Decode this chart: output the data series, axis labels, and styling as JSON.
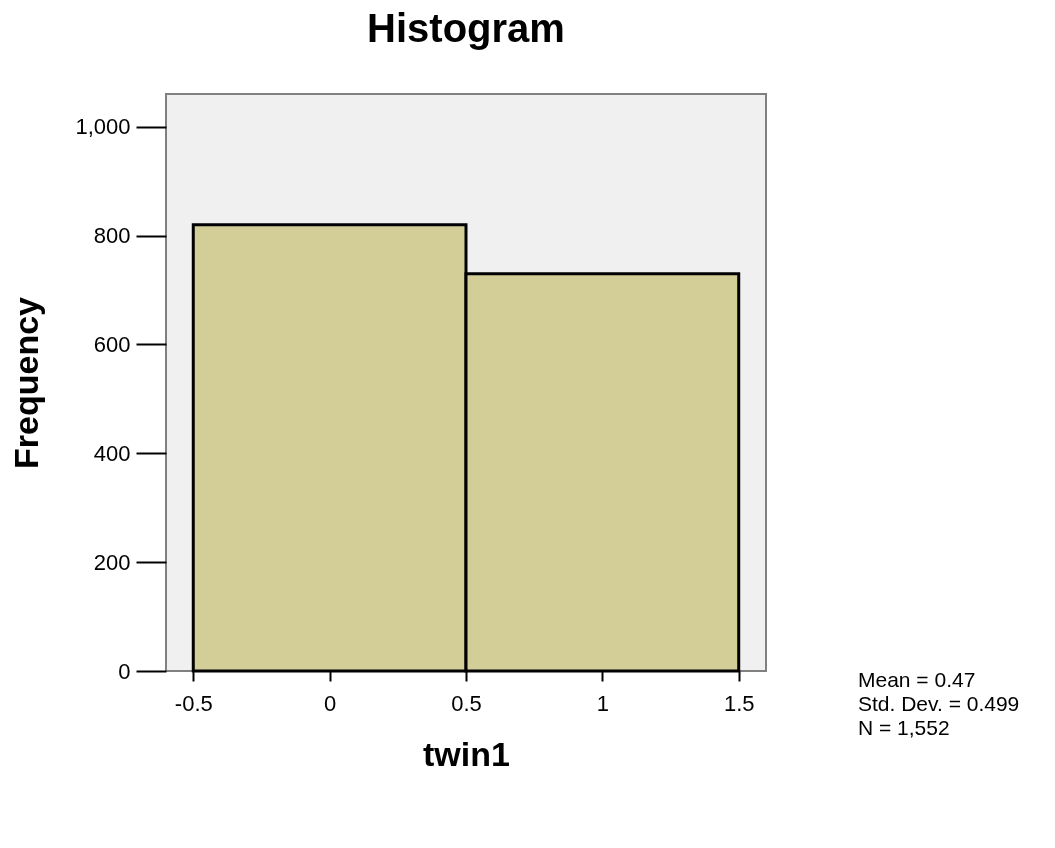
{
  "chart_data": {
    "type": "histogram",
    "title": "Histogram",
    "xlabel": "twin1",
    "ylabel": "Frequency",
    "bins": [
      -0.5,
      0.5,
      1.5
    ],
    "values": [
      820,
      730
    ],
    "color": "#d3ce98",
    "xlim": [
      -0.6,
      1.6
    ],
    "xticks": [
      -0.5,
      0,
      0.5,
      1,
      1.5
    ],
    "ylim": [
      0,
      1060
    ],
    "yticks": [
      0,
      200,
      400,
      600,
      800,
      {
        "value": 1000,
        "label": "1,000"
      }
    ],
    "grid": false,
    "annotations": [
      "Mean = 0.47",
      "Std. Dev. = 0.499",
      "N = 1,552"
    ]
  }
}
